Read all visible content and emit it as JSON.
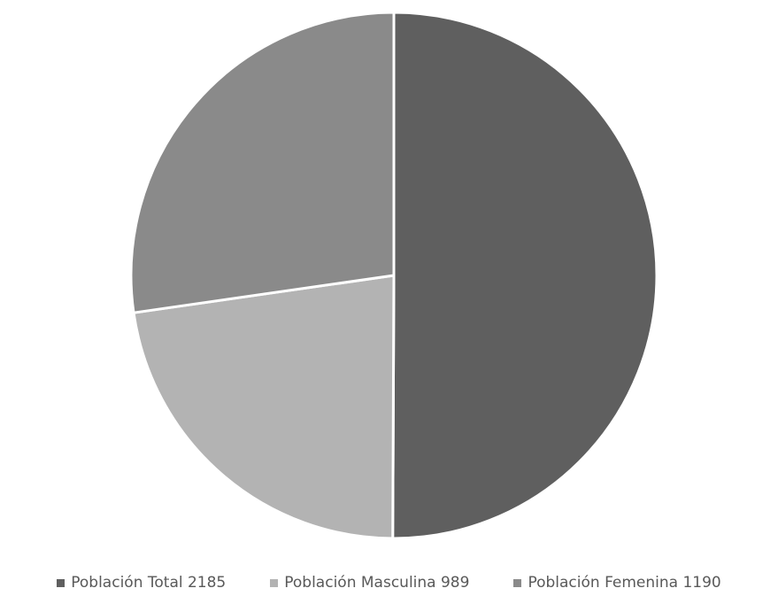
{
  "chart_data": {
    "type": "pie",
    "categories": [
      "Población Total 2185",
      "Población Masculina 989",
      "Población Femenina 1190"
    ],
    "values": [
      2185,
      989,
      1190
    ],
    "colors": [
      "#5f5f5f",
      "#b3b3b3",
      "#8a8a8a"
    ],
    "start_angle": "12 o'clock",
    "direction": "clockwise",
    "legend_position": "bottom",
    "title": ""
  }
}
